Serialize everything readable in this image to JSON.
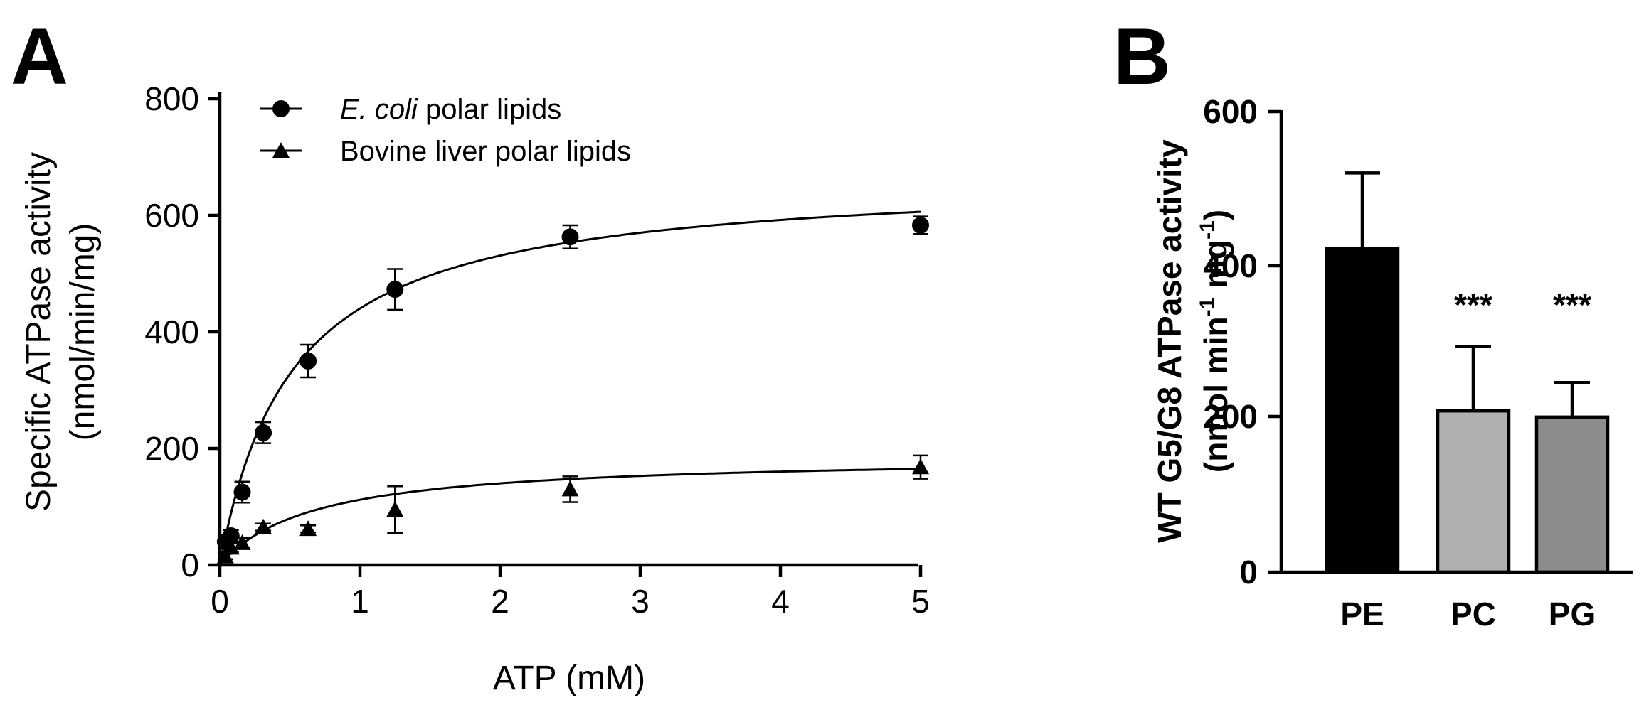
{
  "panels": {
    "a": {
      "label": "A"
    },
    "b": {
      "label": "B"
    }
  },
  "chart_data": [
    {
      "type": "scatter",
      "panel": "A",
      "title": "",
      "xlabel": "ATP (mM)",
      "ylabel_line1": "Specific ATPase activity",
      "ylabel_line2": "(nmol/min/mg)",
      "xlim": [
        0,
        5
      ],
      "ylim": [
        0,
        800
      ],
      "xticks": [
        0,
        1,
        2,
        3,
        4,
        5
      ],
      "yticks": [
        0,
        200,
        400,
        600,
        800
      ],
      "grid": false,
      "legend_position": "top-left",
      "series": [
        {
          "name_italic": "E. coli",
          "name_rest": " polar lipids",
          "marker": "circle",
          "x": [
            0.04,
            0.08,
            0.16,
            0.31,
            0.63,
            1.25,
            2.5,
            5.0
          ],
          "y": [
            40,
            50,
            125,
            227,
            350,
            473,
            563,
            583
          ],
          "error": [
            10,
            10,
            18,
            18,
            28,
            35,
            20,
            15
          ],
          "fit": {
            "model": "michaelis-menten",
            "vmax": 669,
            "km": 0.52
          }
        },
        {
          "name": "Bovine liver polar lipids",
          "marker": "triangle",
          "x": [
            0.04,
            0.08,
            0.16,
            0.31,
            0.63,
            1.25,
            2.5,
            5.0
          ],
          "y": [
            15,
            30,
            38,
            65,
            62,
            95,
            130,
            168
          ],
          "error": [
            5,
            8,
            8,
            6,
            6,
            40,
            22,
            20
          ],
          "fit": {
            "model": "michaelis-menten",
            "vmax": 187,
            "km": 0.67
          }
        }
      ]
    },
    {
      "type": "bar",
      "panel": "B",
      "title": "",
      "xlabel": "",
      "ylabel_line1": "WT G5/G8 ATPase activity",
      "ylabel_line2_pre": "(nmol min",
      "ylabel_sup1": "-1",
      "ylabel_mid": " mg",
      "ylabel_sup2": "-1",
      "ylabel_post": ")",
      "ylim": [
        0,
        600
      ],
      "yticks": [
        0,
        200,
        400,
        600
      ],
      "grid": false,
      "categories": [
        "PE",
        "PC",
        "PG"
      ],
      "values": [
        422,
        210,
        202
      ],
      "error": [
        98,
        84,
        45
      ],
      "colors": [
        "#000000",
        "#b0b0b0",
        "#8c8c8c"
      ],
      "annotations": [
        "",
        "***",
        "***"
      ]
    }
  ]
}
